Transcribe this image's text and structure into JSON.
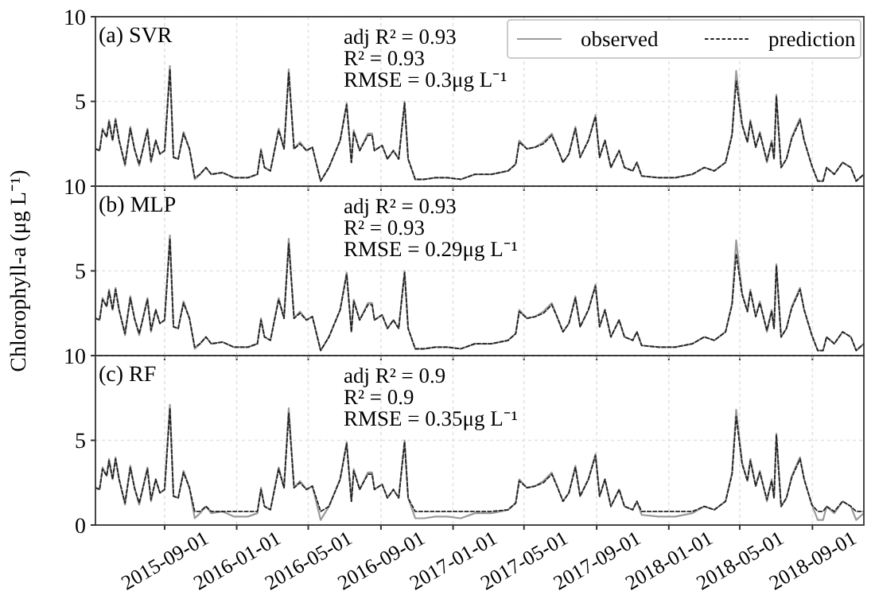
{
  "chart_data": [
    {
      "type": "line",
      "annotations": [
        "(a) SVR",
        "adj R² = 0.93",
        "R² = 0.93",
        "RMSE = 0.3μg L⁻¹"
      ],
      "x": [
        "2015-05-07",
        "2015-05-14",
        "2015-05-19",
        "2015-05-26",
        "2015-05-30",
        "2015-06-05",
        "2015-06-10",
        "2015-06-16",
        "2015-06-26",
        "2015-07-05",
        "2015-07-12",
        "2015-07-20",
        "2015-08-03",
        "2015-08-09",
        "2015-08-17",
        "2015-08-24",
        "2015-09-01",
        "2015-09-10",
        "2015-09-16",
        "2015-09-24",
        "2015-10-03",
        "2015-10-13",
        "2015-10-22",
        "2015-10-31",
        "2015-11-10",
        "2015-11-19",
        "2015-12-08",
        "2015-12-27",
        "2016-01-20",
        "2016-02-05",
        "2016-02-11",
        "2016-02-17",
        "2016-02-27",
        "2016-03-12",
        "2016-03-21",
        "2016-03-29",
        "2016-04-07",
        "2016-04-17",
        "2016-04-28",
        "2016-05-08",
        "2016-05-22",
        "2016-06-05",
        "2016-06-24",
        "2016-07-05",
        "2016-07-13",
        "2016-07-17",
        "2016-07-27",
        "2016-08-10",
        "2016-08-17",
        "2016-08-21",
        "2016-09-03",
        "2016-09-12",
        "2016-09-22",
        "2016-10-01",
        "2016-10-11",
        "2016-10-17",
        "2016-10-29",
        "2016-11-13",
        "2016-12-02",
        "2016-12-22",
        "2017-01-14",
        "2017-02-07",
        "2017-03-07",
        "2017-04-04",
        "2017-04-17",
        "2017-04-23",
        "2017-05-06",
        "2017-05-20",
        "2017-06-03",
        "2017-06-17",
        "2017-06-27",
        "2017-07-06",
        "2017-07-16",
        "2017-07-27",
        "2017-08-04",
        "2017-08-18",
        "2017-08-30",
        "2017-09-06",
        "2017-09-15",
        "2017-09-25",
        "2017-10-09",
        "2017-10-18",
        "2017-11-01",
        "2017-11-08",
        "2017-11-16",
        "2017-12-15",
        "2018-01-12",
        "2018-02-10",
        "2018-03-02",
        "2018-03-19",
        "2018-04-07",
        "2018-04-18",
        "2018-04-25",
        "2018-05-05",
        "2018-05-14",
        "2018-05-19",
        "2018-05-28",
        "2018-06-04",
        "2018-06-16",
        "2018-06-24",
        "2018-06-28",
        "2018-07-02",
        "2018-07-10",
        "2018-07-19",
        "2018-07-28",
        "2018-08-11",
        "2018-08-18",
        "2018-08-31",
        "2018-09-10",
        "2018-09-19",
        "2018-09-25",
        "2018-10-08",
        "2018-10-22",
        "2018-11-05",
        "2018-11-14",
        "2018-11-27"
      ],
      "series": [
        {
          "name": "observed",
          "color": "#9a9a9a",
          "line_style": "solid",
          "values": [
            2.2,
            2.1,
            3.4,
            2.9,
            3.9,
            2.7,
            4.0,
            2.7,
            1.2,
            3.5,
            2.2,
            1.2,
            3.4,
            1.4,
            2.7,
            1.9,
            2.1,
            7.1,
            1.7,
            1.6,
            3.2,
            2.2,
            0.4,
            0.7,
            1.1,
            0.7,
            0.8,
            0.5,
            0.5,
            0.7,
            2.2,
            1.1,
            0.9,
            3.4,
            2.2,
            6.9,
            2.2,
            2.6,
            2.1,
            2.3,
            0.3,
            1.1,
            2.7,
            4.9,
            1.4,
            3.3,
            2.1,
            3.1,
            3.1,
            2.1,
            2.4,
            1.6,
            2.1,
            1.6,
            5.0,
            1.6,
            0.4,
            0.4,
            0.5,
            0.5,
            0.4,
            0.7,
            0.7,
            0.9,
            1.3,
            2.7,
            2.2,
            2.3,
            2.6,
            3.1,
            2.2,
            1.4,
            1.9,
            3.5,
            1.7,
            2.7,
            4.2,
            1.7,
            2.7,
            1.1,
            2.1,
            1.1,
            0.9,
            1.4,
            0.6,
            0.5,
            0.5,
            0.7,
            1.1,
            0.9,
            1.4,
            3.1,
            6.8,
            3.7,
            2.6,
            3.9,
            2.3,
            3.2,
            1.4,
            2.7,
            1.6,
            5.4,
            1.1,
            1.6,
            2.9,
            4.0,
            2.7,
            1.2,
            0.3,
            0.3,
            1.1,
            0.7,
            1.4,
            1.1,
            0.3,
            0.7
          ]
        },
        {
          "name": "prediction",
          "color": "#222222",
          "line_style": "dashed",
          "values": [
            2.2,
            2.1,
            3.3,
            2.9,
            3.8,
            2.7,
            3.9,
            2.7,
            1.3,
            3.4,
            2.2,
            1.3,
            3.3,
            1.5,
            2.7,
            1.9,
            2.1,
            6.9,
            1.7,
            1.6,
            3.1,
            2.2,
            0.5,
            0.7,
            1.1,
            0.7,
            0.8,
            0.5,
            0.5,
            0.7,
            2.1,
            1.1,
            0.9,
            3.3,
            2.2,
            6.7,
            2.2,
            2.5,
            2.1,
            2.3,
            0.3,
            1.1,
            2.7,
            4.8,
            1.4,
            3.2,
            2.1,
            3.0,
            3.0,
            2.1,
            2.4,
            1.6,
            2.1,
            1.6,
            4.9,
            1.6,
            0.4,
            0.4,
            0.5,
            0.5,
            0.4,
            0.7,
            0.7,
            0.9,
            1.3,
            2.6,
            2.2,
            2.3,
            2.5,
            3.0,
            2.2,
            1.4,
            1.9,
            3.4,
            1.7,
            2.7,
            4.1,
            1.7,
            2.7,
            1.1,
            2.1,
            1.1,
            0.9,
            1.4,
            0.6,
            0.5,
            0.5,
            0.7,
            1.1,
            0.9,
            1.4,
            3.0,
            6.2,
            3.6,
            2.6,
            3.8,
            2.3,
            3.1,
            1.5,
            2.6,
            1.6,
            5.3,
            1.1,
            1.6,
            2.8,
            3.9,
            2.7,
            1.2,
            0.3,
            0.3,
            1.1,
            0.7,
            1.4,
            1.1,
            0.3,
            0.7
          ]
        }
      ],
      "xlim": [
        "2015-05-07",
        "2018-11-27"
      ],
      "xticks": [
        "2015-09-01",
        "2016-01-01",
        "2016-05-01",
        "2016-09-01",
        "2017-01-01",
        "2017-05-01",
        "2017-09-01",
        "2018-01-01",
        "2018-05-01",
        "2018-09-01"
      ],
      "ylim": [
        0,
        10
      ],
      "yticks": [
        {
          "value": 0,
          "label": null
        },
        5,
        10
      ],
      "grid": true,
      "legend": "top right",
      "tick_labels": "y"
    },
    {
      "type": "line",
      "ylabel": "Chlorophyll-a (μg L⁻¹)",
      "annotations": [
        "(b) MLP",
        "adj R² = 0.93",
        "R² = 0.93",
        "RMSE = 0.29μg L⁻¹"
      ],
      "x": [
        "2015-05-07",
        "2015-05-14",
        "2015-05-19",
        "2015-05-26",
        "2015-05-30",
        "2015-06-05",
        "2015-06-10",
        "2015-06-16",
        "2015-06-26",
        "2015-07-05",
        "2015-07-12",
        "2015-07-20",
        "2015-08-03",
        "2015-08-09",
        "2015-08-17",
        "2015-08-24",
        "2015-09-01",
        "2015-09-10",
        "2015-09-16",
        "2015-09-24",
        "2015-10-03",
        "2015-10-13",
        "2015-10-22",
        "2015-10-31",
        "2015-11-10",
        "2015-11-19",
        "2015-12-08",
        "2015-12-27",
        "2016-01-20",
        "2016-02-05",
        "2016-02-11",
        "2016-02-17",
        "2016-02-27",
        "2016-03-12",
        "2016-03-21",
        "2016-03-29",
        "2016-04-07",
        "2016-04-17",
        "2016-04-28",
        "2016-05-08",
        "2016-05-22",
        "2016-06-05",
        "2016-06-24",
        "2016-07-05",
        "2016-07-13",
        "2016-07-17",
        "2016-07-27",
        "2016-08-10",
        "2016-08-17",
        "2016-08-21",
        "2016-09-03",
        "2016-09-12",
        "2016-09-22",
        "2016-10-01",
        "2016-10-11",
        "2016-10-17",
        "2016-10-29",
        "2016-11-13",
        "2016-12-02",
        "2016-12-22",
        "2017-01-14",
        "2017-02-07",
        "2017-03-07",
        "2017-04-04",
        "2017-04-17",
        "2017-04-23",
        "2017-05-06",
        "2017-05-20",
        "2017-06-03",
        "2017-06-17",
        "2017-06-27",
        "2017-07-06",
        "2017-07-16",
        "2017-07-27",
        "2017-08-04",
        "2017-08-18",
        "2017-08-30",
        "2017-09-06",
        "2017-09-15",
        "2017-09-25",
        "2017-10-09",
        "2017-10-18",
        "2017-11-01",
        "2017-11-08",
        "2017-11-16",
        "2017-12-15",
        "2018-01-12",
        "2018-02-10",
        "2018-03-02",
        "2018-03-19",
        "2018-04-07",
        "2018-04-18",
        "2018-04-25",
        "2018-05-05",
        "2018-05-14",
        "2018-05-19",
        "2018-05-28",
        "2018-06-04",
        "2018-06-16",
        "2018-06-24",
        "2018-06-28",
        "2018-07-02",
        "2018-07-10",
        "2018-07-19",
        "2018-07-28",
        "2018-08-11",
        "2018-08-18",
        "2018-08-31",
        "2018-09-10",
        "2018-09-19",
        "2018-09-25",
        "2018-10-08",
        "2018-10-22",
        "2018-11-05",
        "2018-11-14",
        "2018-11-27"
      ],
      "series": [
        {
          "color": "#9a9a9a",
          "line_style": "solid",
          "values": [
            2.2,
            2.1,
            3.4,
            2.9,
            3.9,
            2.7,
            4.0,
            2.7,
            1.2,
            3.5,
            2.2,
            1.2,
            3.4,
            1.4,
            2.7,
            1.9,
            2.1,
            7.1,
            1.7,
            1.6,
            3.2,
            2.2,
            0.4,
            0.7,
            1.1,
            0.7,
            0.8,
            0.5,
            0.5,
            0.7,
            2.2,
            1.1,
            0.9,
            3.4,
            2.2,
            6.9,
            2.2,
            2.6,
            2.1,
            2.3,
            0.3,
            1.1,
            2.7,
            4.9,
            1.4,
            3.3,
            2.1,
            3.1,
            3.1,
            2.1,
            2.4,
            1.6,
            2.1,
            1.6,
            5.0,
            1.6,
            0.4,
            0.4,
            0.5,
            0.5,
            0.4,
            0.7,
            0.7,
            0.9,
            1.3,
            2.7,
            2.2,
            2.3,
            2.6,
            3.1,
            2.2,
            1.4,
            1.9,
            3.5,
            1.7,
            2.7,
            4.2,
            1.7,
            2.7,
            1.1,
            2.1,
            1.1,
            0.9,
            1.4,
            0.6,
            0.5,
            0.5,
            0.7,
            1.1,
            0.9,
            1.4,
            3.1,
            6.8,
            3.7,
            2.6,
            3.9,
            2.3,
            3.2,
            1.4,
            2.7,
            1.6,
            5.4,
            1.1,
            1.6,
            2.9,
            4.0,
            2.7,
            1.2,
            0.3,
            0.3,
            1.1,
            0.7,
            1.4,
            1.1,
            0.3,
            0.7
          ]
        },
        {
          "color": "#222222",
          "line_style": "dashed",
          "values": [
            2.2,
            2.1,
            3.3,
            2.9,
            3.8,
            2.7,
            3.9,
            2.7,
            1.3,
            3.4,
            2.2,
            1.3,
            3.3,
            1.5,
            2.7,
            1.9,
            2.1,
            6.9,
            1.7,
            1.6,
            3.1,
            2.2,
            0.5,
            0.7,
            1.1,
            0.7,
            0.8,
            0.5,
            0.5,
            0.7,
            2.1,
            1.1,
            0.9,
            3.3,
            2.2,
            6.6,
            2.2,
            2.5,
            2.1,
            2.3,
            0.3,
            1.1,
            2.7,
            4.8,
            1.4,
            3.2,
            2.1,
            3.0,
            3.0,
            2.1,
            2.4,
            1.6,
            2.1,
            1.6,
            4.9,
            1.6,
            0.4,
            0.4,
            0.5,
            0.5,
            0.4,
            0.7,
            0.7,
            0.9,
            1.3,
            2.6,
            2.2,
            2.3,
            2.5,
            3.0,
            2.2,
            1.4,
            1.9,
            3.4,
            1.7,
            2.7,
            4.1,
            1.7,
            2.7,
            1.1,
            2.1,
            1.1,
            0.9,
            1.4,
            0.6,
            0.5,
            0.5,
            0.7,
            1.1,
            0.9,
            1.4,
            3.0,
            6.0,
            3.6,
            2.6,
            3.8,
            2.3,
            3.1,
            1.5,
            2.6,
            1.6,
            5.3,
            1.1,
            1.6,
            2.8,
            3.9,
            2.7,
            1.2,
            0.3,
            0.3,
            1.1,
            0.7,
            1.4,
            1.1,
            0.3,
            0.7
          ]
        }
      ],
      "xlim": [
        "2015-05-07",
        "2018-11-27"
      ],
      "xticks": [
        "2015-09-01",
        "2016-01-01",
        "2016-05-01",
        "2016-09-01",
        "2017-01-01",
        "2017-05-01",
        "2017-09-01",
        "2018-01-01",
        "2018-05-01",
        "2018-09-01"
      ],
      "ylim": [
        0,
        10
      ],
      "yticks": [
        {
          "value": 0,
          "label": null
        },
        5,
        10
      ],
      "grid": true,
      "tick_labels": "y"
    },
    {
      "type": "line",
      "annotations": [
        "(c) RF",
        "adj R² = 0.9",
        "R² = 0.9",
        "RMSE = 0.35μg L⁻¹"
      ],
      "x": [
        "2015-05-07",
        "2015-05-14",
        "2015-05-19",
        "2015-05-26",
        "2015-05-30",
        "2015-06-05",
        "2015-06-10",
        "2015-06-16",
        "2015-06-26",
        "2015-07-05",
        "2015-07-12",
        "2015-07-20",
        "2015-08-03",
        "2015-08-09",
        "2015-08-17",
        "2015-08-24",
        "2015-09-01",
        "2015-09-10",
        "2015-09-16",
        "2015-09-24",
        "2015-10-03",
        "2015-10-13",
        "2015-10-22",
        "2015-10-31",
        "2015-11-10",
        "2015-11-19",
        "2015-12-08",
        "2015-12-27",
        "2016-01-20",
        "2016-02-05",
        "2016-02-11",
        "2016-02-17",
        "2016-02-27",
        "2016-03-12",
        "2016-03-21",
        "2016-03-29",
        "2016-04-07",
        "2016-04-17",
        "2016-04-28",
        "2016-05-08",
        "2016-05-22",
        "2016-06-05",
        "2016-06-24",
        "2016-07-05",
        "2016-07-13",
        "2016-07-17",
        "2016-07-27",
        "2016-08-10",
        "2016-08-17",
        "2016-08-21",
        "2016-09-03",
        "2016-09-12",
        "2016-09-22",
        "2016-10-01",
        "2016-10-11",
        "2016-10-17",
        "2016-10-29",
        "2016-11-13",
        "2016-12-02",
        "2016-12-22",
        "2017-01-14",
        "2017-02-07",
        "2017-03-07",
        "2017-04-04",
        "2017-04-17",
        "2017-04-23",
        "2017-05-06",
        "2017-05-20",
        "2017-06-03",
        "2017-06-17",
        "2017-06-27",
        "2017-07-06",
        "2017-07-16",
        "2017-07-27",
        "2017-08-04",
        "2017-08-18",
        "2017-08-30",
        "2017-09-06",
        "2017-09-15",
        "2017-09-25",
        "2017-10-09",
        "2017-10-18",
        "2017-11-01",
        "2017-11-08",
        "2017-11-16",
        "2017-12-15",
        "2018-01-12",
        "2018-02-10",
        "2018-03-02",
        "2018-03-19",
        "2018-04-07",
        "2018-04-18",
        "2018-04-25",
        "2018-05-05",
        "2018-05-14",
        "2018-05-19",
        "2018-05-28",
        "2018-06-04",
        "2018-06-16",
        "2018-06-24",
        "2018-06-28",
        "2018-07-02",
        "2018-07-10",
        "2018-07-19",
        "2018-07-28",
        "2018-08-11",
        "2018-08-18",
        "2018-08-31",
        "2018-09-10",
        "2018-09-19",
        "2018-09-25",
        "2018-10-08",
        "2018-10-22",
        "2018-11-05",
        "2018-11-14",
        "2018-11-27"
      ],
      "series": [
        {
          "color": "#9a9a9a",
          "line_style": "solid",
          "values": [
            2.2,
            2.1,
            3.4,
            2.9,
            3.9,
            2.7,
            4.0,
            2.7,
            1.2,
            3.5,
            2.2,
            1.2,
            3.4,
            1.4,
            2.7,
            1.9,
            2.1,
            7.1,
            1.7,
            1.6,
            3.2,
            2.2,
            0.4,
            0.7,
            1.1,
            0.7,
            0.8,
            0.5,
            0.5,
            0.7,
            2.2,
            1.1,
            0.9,
            3.4,
            2.2,
            6.9,
            2.2,
            2.6,
            2.1,
            2.3,
            0.3,
            1.1,
            2.7,
            4.9,
            1.4,
            3.3,
            2.1,
            3.1,
            3.1,
            2.1,
            2.4,
            1.6,
            2.1,
            1.6,
            5.0,
            1.6,
            0.4,
            0.4,
            0.5,
            0.5,
            0.4,
            0.7,
            0.7,
            0.9,
            1.3,
            2.7,
            2.2,
            2.3,
            2.6,
            3.1,
            2.2,
            1.4,
            1.9,
            3.5,
            1.7,
            2.7,
            4.2,
            1.7,
            2.7,
            1.1,
            2.1,
            1.1,
            0.9,
            1.4,
            0.6,
            0.5,
            0.5,
            0.7,
            1.1,
            0.9,
            1.4,
            3.1,
            6.8,
            3.7,
            2.6,
            3.9,
            2.3,
            3.2,
            1.4,
            2.7,
            1.6,
            5.4,
            1.1,
            1.6,
            2.9,
            4.0,
            2.7,
            1.2,
            0.3,
            0.3,
            1.1,
            0.7,
            1.4,
            1.1,
            0.3,
            0.7
          ]
        },
        {
          "color": "#222222",
          "line_style": "dashed",
          "values": [
            2.2,
            2.1,
            3.3,
            2.9,
            3.8,
            2.7,
            3.9,
            2.7,
            1.3,
            3.4,
            2.2,
            1.3,
            3.3,
            1.5,
            2.7,
            1.9,
            2.1,
            6.9,
            1.7,
            1.6,
            3.1,
            2.2,
            0.8,
            0.8,
            1.1,
            0.8,
            0.8,
            0.8,
            0.8,
            0.8,
            2.1,
            1.1,
            0.9,
            3.3,
            2.2,
            6.6,
            2.2,
            2.5,
            2.1,
            2.3,
            0.8,
            1.1,
            2.7,
            4.8,
            1.4,
            3.2,
            2.1,
            3.0,
            3.0,
            2.1,
            2.4,
            1.6,
            2.1,
            1.6,
            4.9,
            1.6,
            0.8,
            0.8,
            0.8,
            0.8,
            0.8,
            0.8,
            0.8,
            0.9,
            1.3,
            2.6,
            2.2,
            2.3,
            2.5,
            3.0,
            2.2,
            1.4,
            1.9,
            3.4,
            1.7,
            2.7,
            4.1,
            1.7,
            2.7,
            1.1,
            2.1,
            1.1,
            0.9,
            1.4,
            0.8,
            0.8,
            0.8,
            0.8,
            1.1,
            0.9,
            1.4,
            3.0,
            6.4,
            3.6,
            2.6,
            3.8,
            2.3,
            3.1,
            1.5,
            2.6,
            1.6,
            5.3,
            1.1,
            1.6,
            2.8,
            3.9,
            2.7,
            1.2,
            0.8,
            0.8,
            1.1,
            0.8,
            1.4,
            1.1,
            0.8,
            0.8
          ]
        }
      ],
      "xlim": [
        "2015-05-07",
        "2018-11-27"
      ],
      "xticks": [
        "2015-09-01",
        "2016-01-01",
        "2016-05-01",
        "2016-09-01",
        "2017-01-01",
        "2017-05-01",
        "2017-09-01",
        "2018-01-01",
        "2018-05-01",
        "2018-09-01"
      ],
      "ylim": [
        0,
        10
      ],
      "yticks": [
        0,
        5,
        10
      ],
      "grid": true
    }
  ]
}
